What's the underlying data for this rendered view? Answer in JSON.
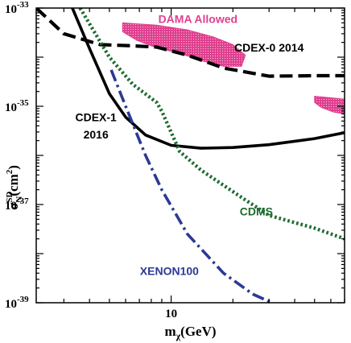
{
  "chart_data": {
    "type": "line",
    "title": "",
    "xlabel_main": "m",
    "xlabel_sub": "χ",
    "xlabel_unit": "(GeV)",
    "ylabel_main": "σ",
    "ylabel_sup": "SD",
    "ylabel_sub": "N",
    "ylabel_unit": "(cm",
    "ylabel_unit_sup": "2",
    "ylabel_unit_end": ")",
    "x_scale": "log",
    "y_scale": "log",
    "xlim": [
      2.2,
      70
    ],
    "ylim": [
      1e-39,
      1e-33
    ],
    "colors": {
      "dama": "#e0408f",
      "cdex1": "#000000",
      "cdex0": "#000000",
      "cdms": "#1e6b30",
      "xenon": "#2a3a95"
    },
    "x_ticks": [
      {
        "value": 10,
        "label": "10"
      }
    ],
    "y_ticks": [
      {
        "value": 1e-33,
        "label": "10",
        "exp": "-33"
      },
      {
        "value": 1e-35,
        "label": "10",
        "exp": "-35"
      },
      {
        "value": 1e-37,
        "label": "10",
        "exp": "-37"
      },
      {
        "value": 1e-39,
        "label": "10",
        "exp": "-39"
      }
    ],
    "series": [
      {
        "key": "cdex1",
        "style": "solid",
        "points": [
          [
            3.3,
            1e-33
          ],
          [
            4.0,
            1.5e-34
          ],
          [
            5.0,
            1.8e-35
          ],
          [
            6.0,
            6e-36
          ],
          [
            7.5,
            2.6e-36
          ],
          [
            10,
            1.6e-36
          ],
          [
            14,
            1.4e-36
          ],
          [
            20,
            1.45e-36
          ],
          [
            30,
            1.65e-36
          ],
          [
            50,
            2.2e-36
          ],
          [
            70,
            2.9e-36
          ]
        ]
      },
      {
        "key": "cdex0",
        "style": "dashed",
        "points": [
          [
            2.2,
            1e-33
          ],
          [
            3.0,
            3e-34
          ],
          [
            4.5,
            1.8e-34
          ],
          [
            6.5,
            1.7e-34
          ],
          [
            8.5,
            1.6e-34
          ],
          [
            12,
            1.1e-34
          ],
          [
            18,
            6e-35
          ],
          [
            30,
            4.1e-35
          ],
          [
            50,
            4.2e-35
          ],
          [
            70,
            4.2e-35
          ]
        ]
      },
      {
        "key": "cdms",
        "style": "dotted",
        "points": [
          [
            3.6,
            1e-33
          ],
          [
            5.0,
            1e-34
          ],
          [
            6.5,
            2.8e-35
          ],
          [
            8.5,
            1.2e-35
          ],
          [
            9.0,
            8e-36
          ],
          [
            11,
            1.2e-36
          ],
          [
            14,
            5e-37
          ],
          [
            22,
            1.4e-37
          ],
          [
            30,
            6e-38
          ],
          [
            50,
            3.3e-38
          ],
          [
            70,
            2e-38
          ]
        ]
      },
      {
        "key": "xenon",
        "style": "dashdot",
        "points": [
          [
            5.1,
            5.5e-35
          ],
          [
            6.0,
            1e-35
          ],
          [
            7.5,
            1e-36
          ],
          [
            9.0,
            2e-37
          ],
          [
            12,
            2.5e-38
          ],
          [
            18,
            4e-39
          ],
          [
            25,
            1.5e-39
          ],
          [
            31,
            1e-39
          ]
        ]
      }
    ],
    "dama_regions": [
      {
        "points": [
          [
            5.8,
            5e-34
          ],
          [
            8.5,
            4.5e-34
          ],
          [
            12,
            3.6e-34
          ],
          [
            16,
            2.6e-34
          ],
          [
            20,
            1.8e-34
          ],
          [
            23,
            1.1e-34
          ],
          [
            22,
            6.5e-35
          ],
          [
            18,
            6.5e-35
          ],
          [
            14,
            8.5e-35
          ],
          [
            11,
            1.2e-34
          ],
          [
            8.5,
            1.55e-34
          ],
          [
            6.8,
            2.2e-34
          ],
          [
            5.8,
            3.3e-34
          ]
        ]
      },
      {
        "points": [
          [
            50,
            1.6e-35
          ],
          [
            70,
            1.4e-35
          ],
          [
            70,
            7e-36
          ],
          [
            62,
            7.6e-36
          ],
          [
            54,
            9.4e-36
          ],
          [
            50,
            1.2e-35
          ]
        ]
      }
    ],
    "annotations": [
      {
        "series": "dama",
        "text": "DAMA Allowed",
        "x": 13.5,
        "y": 5e-34
      },
      {
        "series": "cdex0",
        "text": "CDEX-0 2014",
        "x": 30,
        "y": 1.3e-34
      },
      {
        "series": "cdex1",
        "text": "CDEX-1",
        "x": 4.3,
        "y": 5e-36
      },
      {
        "series": "cdex1",
        "text": "2016",
        "x": 4.3,
        "y": 2.2e-36
      },
      {
        "series": "cdms",
        "text": "CDMS",
        "x": 26,
        "y": 6e-38
      },
      {
        "series": "xenon",
        "text": "XENON100",
        "x": 9.8,
        "y": 3.7e-39
      }
    ]
  }
}
